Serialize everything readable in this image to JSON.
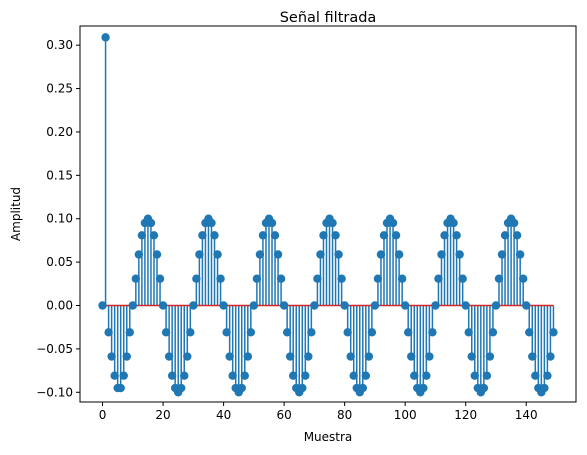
{
  "chart_data": {
    "type": "stem",
    "title": "Señal filtrada",
    "xlabel": "Muestra",
    "ylabel": "Amplitud",
    "xlim": [
      -7.45,
      156.45
    ],
    "ylim": [
      -0.1112,
      0.3221
    ],
    "xticks": [
      0,
      20,
      40,
      60,
      80,
      100,
      120,
      140
    ],
    "yticks": [
      -0.1,
      -0.05,
      0.0,
      0.05,
      0.1,
      0.15,
      0.2,
      0.25,
      0.3
    ],
    "ytick_labels": [
      "−0.10",
      "−0.05",
      "0.00",
      "0.05",
      "0.10",
      "0.15",
      "0.20",
      "0.25",
      "0.30"
    ],
    "xtick_labels": [
      "0",
      "20",
      "40",
      "60",
      "80",
      "100",
      "120",
      "140"
    ],
    "baseline": 0,
    "grid": false,
    "legend": false,
    "colors": {
      "stem": "#1f77b4",
      "baseline": "#d62728",
      "axes": "#000000"
    },
    "x_start": 0,
    "values": [
      0,
      0.309,
      -0.0309,
      -0.0588,
      -0.0809,
      -0.0951,
      -0.0951,
      -0.0809,
      -0.0588,
      -0.0309,
      0,
      0.0309,
      0.0588,
      0.0809,
      0.0951,
      0.1,
      0.0951,
      0.0809,
      0.0588,
      0.0309,
      0,
      -0.0309,
      -0.0588,
      -0.0809,
      -0.0951,
      -0.1,
      -0.0951,
      -0.0809,
      -0.0588,
      -0.0309,
      0,
      0.0309,
      0.0588,
      0.0809,
      0.0951,
      0.1,
      0.0951,
      0.0809,
      0.0588,
      0.0309,
      0,
      -0.0309,
      -0.0588,
      -0.0809,
      -0.0951,
      -0.1,
      -0.0951,
      -0.0809,
      -0.0588,
      -0.0309,
      0,
      0.0309,
      0.0588,
      0.0809,
      0.0951,
      0.1,
      0.0951,
      0.0809,
      0.0588,
      0.0309,
      0,
      -0.0309,
      -0.0588,
      -0.0809,
      -0.0951,
      -0.1,
      -0.0951,
      -0.0809,
      -0.0588,
      -0.0309,
      0,
      0.0309,
      0.0588,
      0.0809,
      0.0951,
      0.1,
      0.0951,
      0.0809,
      0.0588,
      0.0309,
      0,
      -0.0309,
      -0.0588,
      -0.0809,
      -0.0951,
      -0.1,
      -0.0951,
      -0.0809,
      -0.0588,
      -0.0309,
      0,
      0.0309,
      0.0588,
      0.0809,
      0.0951,
      0.1,
      0.0951,
      0.0809,
      0.0588,
      0.0309,
      0,
      -0.0309,
      -0.0588,
      -0.0809,
      -0.0951,
      -0.1,
      -0.0951,
      -0.0809,
      -0.0588,
      -0.0309,
      0,
      0.0309,
      0.0588,
      0.0809,
      0.0951,
      0.1,
      0.0951,
      0.0809,
      0.0588,
      0.0309,
      0,
      -0.0309,
      -0.0588,
      -0.0809,
      -0.0951,
      -0.1,
      -0.0951,
      -0.0809,
      -0.0588,
      -0.0309,
      0,
      0.0309,
      0.0588,
      0.0809,
      0.0951,
      0.1,
      0.0951,
      0.0809,
      0.0588,
      0.0309,
      0,
      -0.0309,
      -0.0588,
      -0.0809,
      -0.0951,
      -0.1,
      -0.0951,
      -0.0809,
      -0.0588,
      -0.0309
    ]
  }
}
